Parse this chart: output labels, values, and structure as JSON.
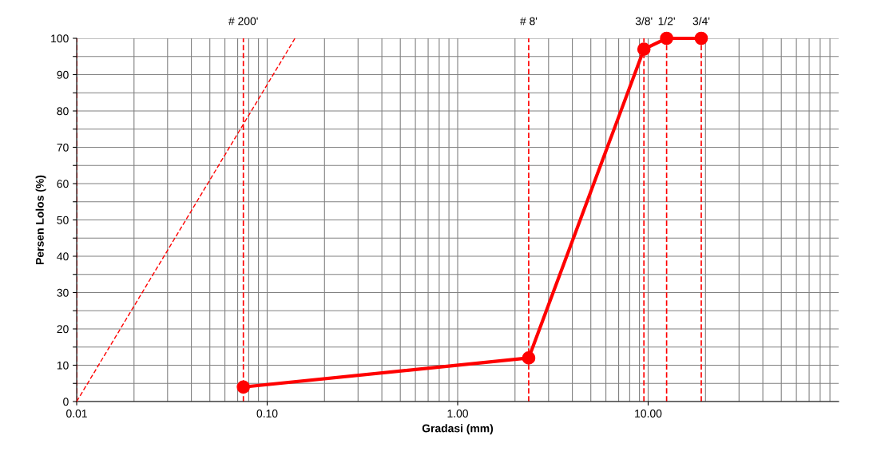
{
  "chart_data": {
    "type": "line",
    "xlabel": "Gradasi (mm)",
    "ylabel": "Persen Lolos (%)",
    "log": "x",
    "grid": true,
    "xlim": [
      0.01,
      100
    ],
    "xticks": [
      {
        "value": 0.01,
        "label": "0.01"
      },
      {
        "value": 0.1,
        "label": "0.10"
      },
      {
        "value": 1,
        "label": "1.00"
      },
      {
        "value": 10,
        "label": "10.00"
      }
    ],
    "ylim": [
      0,
      100
    ],
    "yticks": [
      0,
      {
        "value": 5,
        "label": null
      },
      10,
      {
        "value": 15,
        "label": null
      },
      20,
      {
        "value": 25,
        "label": null
      },
      30,
      {
        "value": 35,
        "label": null
      },
      40,
      {
        "value": 45,
        "label": null
      },
      50,
      {
        "value": 55,
        "label": null
      },
      60,
      {
        "value": 65,
        "label": null
      },
      70,
      {
        "value": 75,
        "label": null
      },
      80,
      {
        "value": 85,
        "label": null
      },
      90,
      {
        "value": 95,
        "label": null
      },
      100
    ],
    "series": [
      {
        "x": [
          0.075,
          2.36,
          9.5,
          12.5,
          19
        ],
        "values": [
          4,
          12,
          97,
          100,
          100
        ],
        "color": "#ff0000",
        "marker": "circle",
        "line_style": "solid"
      },
      {
        "x": [
          0.01,
          0.14
        ],
        "values": [
          0,
          100
        ],
        "color": "#ff0000",
        "marker": "none",
        "line_style": "dashed"
      }
    ],
    "ref_lines": [
      {
        "axis": "x",
        "value": 0.01,
        "label": null,
        "color": "#ff0000",
        "line_style": "dashed"
      },
      {
        "axis": "x",
        "value": 0.075,
        "label": null,
        "color": "#ff0000",
        "line_style": "dashed"
      },
      {
        "axis": "x",
        "value": 2.36,
        "label": null,
        "color": "#ff0000",
        "line_style": "dashed"
      },
      {
        "axis": "x",
        "value": 9.5,
        "label": null,
        "color": "#ff0000",
        "line_style": "dashed"
      },
      {
        "axis": "x",
        "value": 12.5,
        "label": null,
        "color": "#ff0000",
        "line_style": "dashed"
      },
      {
        "axis": "x",
        "value": 19,
        "label": null,
        "color": "#ff0000",
        "line_style": "dashed"
      }
    ],
    "annotations": [
      {
        "text": "# 200'",
        "x": 0.075,
        "y": 100
      },
      {
        "text": "# 8'",
        "x": 2.36,
        "y": 100
      },
      {
        "text": "3/8'",
        "x": 9.5,
        "y": 100
      },
      {
        "text": "1/2'",
        "x": 12.5,
        "y": 100
      },
      {
        "text": "3/4'",
        "x": 19,
        "y": 100
      }
    ]
  }
}
